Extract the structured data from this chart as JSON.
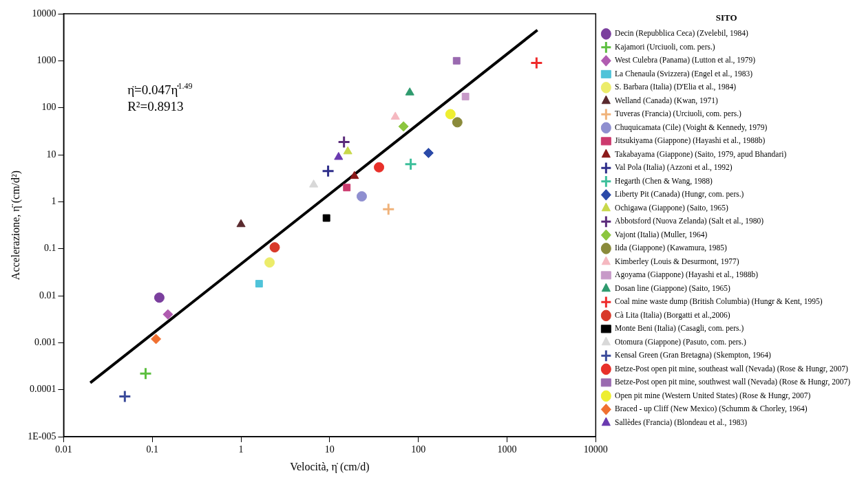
{
  "chart_data": {
    "type": "scatter",
    "xlabel": "Velocità, η̇ (cm/d)",
    "ylabel": "Accelerazione, η̈ (cm/d²)",
    "legend_title": "SITO",
    "annotations": [
      "η̈=0.047η̇$^{1.49}$",
      "R²=0.8913"
    ],
    "log": "xy",
    "grid": false,
    "legend": "right",
    "xlim": [
      0.01,
      10000
    ],
    "xticks": [
      0.01,
      0.1,
      1,
      10,
      100,
      1000,
      10000
    ],
    "ylim": [
      1e-05,
      10000
    ],
    "yticks": [
      {
        "value": 1e-05,
        "label": "1E-005"
      },
      0.0001,
      0.001,
      0.01,
      0.1,
      1,
      10,
      100,
      1000,
      10000
    ],
    "series": [
      {
        "name": "Decin (Repubblica Ceca) (Zvelebil, 1984)",
        "color": "#7b3f9e",
        "marker": "circle",
        "x": [
          0.12
        ],
        "values": [
          0.0091
        ]
      },
      {
        "name": "Kajamori (Urciuoli, com. pers.)",
        "color": "#5cbf3f",
        "marker": "cross",
        "x": [
          0.084
        ],
        "values": [
          0.00022
        ]
      },
      {
        "name": "West Culebra (Panama) (Lutton et al., 1979)",
        "color": "#b05cb0",
        "marker": "diamond",
        "x": [
          0.15
        ],
        "values": [
          0.004
        ]
      },
      {
        "name": "La Chenaula (Svizzera) (Engel et al., 1983)",
        "color": "#4fc3d9",
        "marker": "square",
        "x": [
          1.6
        ],
        "values": [
          0.018
        ]
      },
      {
        "name": "S. Barbara (Italia) (D'Elia et al., 1984)",
        "color": "#ecec6a",
        "marker": "circle",
        "x": [
          2.1
        ],
        "values": [
          0.051
        ]
      },
      {
        "name": "Welland (Canada) (Kwan, 1971)",
        "color": "#5a2a2e",
        "marker": "triangle",
        "x": [
          1.0
        ],
        "values": [
          0.33
        ]
      },
      {
        "name": "Tuveras (Francia) (Urciuoli, com. pers.)",
        "color": "#f0b27a",
        "marker": "cross",
        "x": [
          46
        ],
        "values": [
          0.69
        ]
      },
      {
        "name": "Chuquicamata (Cile) (Voight & Kennedy, 1979)",
        "color": "#8f8fd0",
        "marker": "circle",
        "x": [
          23
        ],
        "values": [
          1.3
        ]
      },
      {
        "name": "Jitsukiyama (Giappone) (Hayashi et al., 1988b)",
        "color": "#cc3a6e",
        "marker": "square",
        "x": [
          15.6
        ],
        "values": [
          2.0
        ]
      },
      {
        "name": "Takabayama (Giappone) (Saito, 1979, apud Bhandari)",
        "color": "#8b1a1a",
        "marker": "triangle",
        "x": [
          19
        ],
        "values": [
          3.5
        ]
      },
      {
        "name": "Val Pola (Italia) (Azzoni et al., 1992)",
        "color": "#2e2e8a",
        "marker": "cross",
        "x": [
          9.6
        ],
        "values": [
          4.5
        ]
      },
      {
        "name": "Hegarth (Chen & Wang, 1988)",
        "color": "#3cbf9a",
        "marker": "cross",
        "x": [
          82
        ],
        "values": [
          6.3
        ]
      },
      {
        "name": "Liberty Pit (Canada) (Hungr, com. pers.)",
        "color": "#2b4aa8",
        "marker": "diamond",
        "x": [
          130
        ],
        "values": [
          10.9
        ]
      },
      {
        "name": "Ochigawa (Giappone) (Saito, 1965)",
        "color": "#c8d84a",
        "marker": "triangle",
        "x": [
          16
        ],
        "values": [
          11.7
        ]
      },
      {
        "name": "Abbotsford (Nuova Zelanda) (Salt et al., 1980)",
        "color": "#5a2a7a",
        "marker": "cross",
        "x": [
          14.5
        ],
        "values": [
          18.7
        ]
      },
      {
        "name": "Vajont (Italia) (Muller, 1964)",
        "color": "#8cc63f",
        "marker": "diamond",
        "x": [
          68
        ],
        "values": [
          40
        ]
      },
      {
        "name": "Iida (Giappone) (Kawamura, 1985)",
        "color": "#8a8a3a",
        "marker": "circle",
        "x": [
          275
        ],
        "values": [
          49
        ]
      },
      {
        "name": "Kimberley (Louis & Desurmont, 1977)",
        "color": "#f5b8c0",
        "marker": "triangle",
        "x": [
          55
        ],
        "values": [
          64
        ]
      },
      {
        "name": "Agoyama (Giappone) (Hayashi et al., 1988b)",
        "color": "#c79ac8",
        "marker": "square",
        "x": [
          340
        ],
        "values": [
          173
        ]
      },
      {
        "name": "Dosan line (Giappone) (Saito, 1965)",
        "color": "#2e9a6e",
        "marker": "triangle",
        "x": [
          80
        ],
        "values": [
          210
        ]
      },
      {
        "name": "Coal mine waste dump (British Columbia) (Hungr & Kent, 1995)",
        "color": "#ee2a2a",
        "marker": "cross",
        "x": [
          2150
        ],
        "values": [
          900
        ]
      },
      {
        "name": "Cà Lita (Italia) (Borgatti et al.,2006)",
        "color": "#d83a2a",
        "marker": "circle",
        "x": [
          2.4
        ],
        "values": [
          0.107
        ]
      },
      {
        "name": "Monte Beni (Italia) (Casagli, com. pers.)",
        "color": "#000000",
        "marker": "square",
        "x": [
          9.2
        ],
        "values": [
          0.45
        ]
      },
      {
        "name": "Otomura (Giappone) (Pasuto, com. pers.)",
        "color": "#d8d8d8",
        "marker": "triangle",
        "x": [
          6.6
        ],
        "values": [
          2.3
        ]
      },
      {
        "name": "Kensal Green (Gran Bretagna) (Skempton, 1964)",
        "color": "#3a4a9a",
        "marker": "cross",
        "x": [
          0.049
        ],
        "values": [
          7.2e-05
        ]
      },
      {
        "name": "Betze-Post open pit mine, southeast wall (Nevada) (Rose & Hungr, 2007)",
        "color": "#e8302a",
        "marker": "circle",
        "x": [
          36
        ],
        "values": [
          5.4
        ]
      },
      {
        "name": "Betze-Post open pit mine, southwest wall (Nevada) (Rose & Hungr, 2007)",
        "color": "#9a6ab0",
        "marker": "square",
        "x": [
          270
        ],
        "values": [
          1000
        ]
      },
      {
        "name": "Open pit mine (Western United States) (Rose & Hungr, 2007)",
        "color": "#eeee30",
        "marker": "circle",
        "x": [
          230
        ],
        "values": [
          73
        ]
      },
      {
        "name": "Braced - up Cliff (New Mexico) (Schumm & Chorley, 1964)",
        "color": "#f07030",
        "marker": "diamond",
        "x": [
          0.11
        ],
        "values": [
          0.0012
        ]
      },
      {
        "name": "Sallèdes (Francia) (Blondeau et al., 1983)",
        "color": "#6a3ab0",
        "marker": "triangle",
        "x": [
          12.6
        ],
        "values": [
          8.9
        ]
      },
      {
        "type": "line",
        "color": "#000000",
        "line_style": "solid",
        "marker": "none",
        "x": [
          0.02,
          2200
        ],
        "values": [
          0.00014,
          4500
        ]
      }
    ]
  }
}
